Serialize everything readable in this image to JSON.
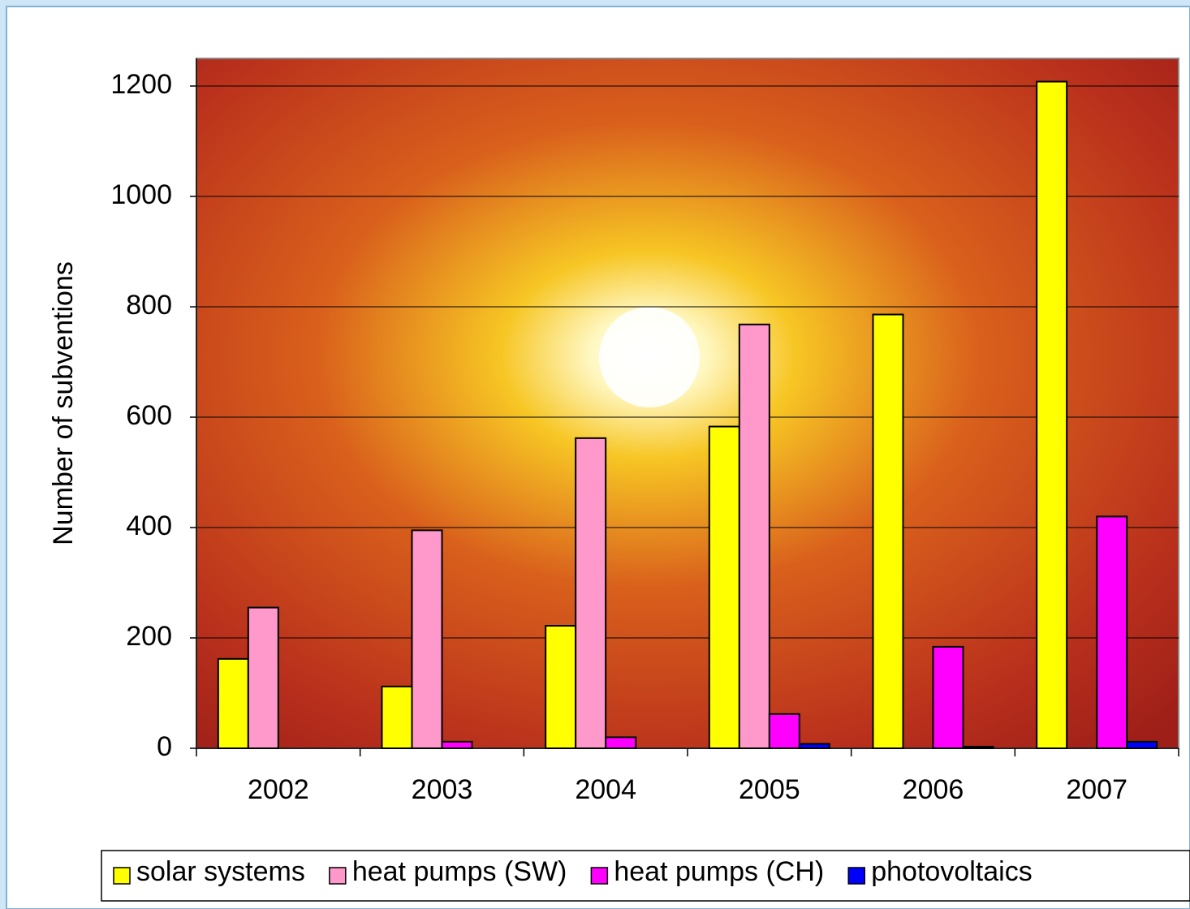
{
  "chart_data": {
    "type": "bar",
    "y_label": "Number of subventions",
    "categories": [
      "2002",
      "2003",
      "2004",
      "2005",
      "2006",
      "2007"
    ],
    "series": [
      {
        "name": "solar systems",
        "color": "#ffff00",
        "values": [
          162,
          112,
          222,
          583,
          786,
          1208
        ]
      },
      {
        "name": "heat pumps (SW)",
        "color": "#ff99cc",
        "values": [
          255,
          395,
          562,
          768,
          0,
          0
        ]
      },
      {
        "name": "heat pumps (CH)",
        "color": "#ff00ff",
        "values": [
          0,
          12,
          20,
          62,
          184,
          420
        ]
      },
      {
        "name": "photovoltaics",
        "color": "#0000ff",
        "values": [
          0,
          0,
          0,
          8,
          3,
          12
        ]
      }
    ],
    "ylim": [
      0,
      1250
    ],
    "yticks": [
      0,
      200,
      400,
      600,
      800,
      1000,
      1200
    ],
    "grid": true,
    "legend": "bottom"
  }
}
